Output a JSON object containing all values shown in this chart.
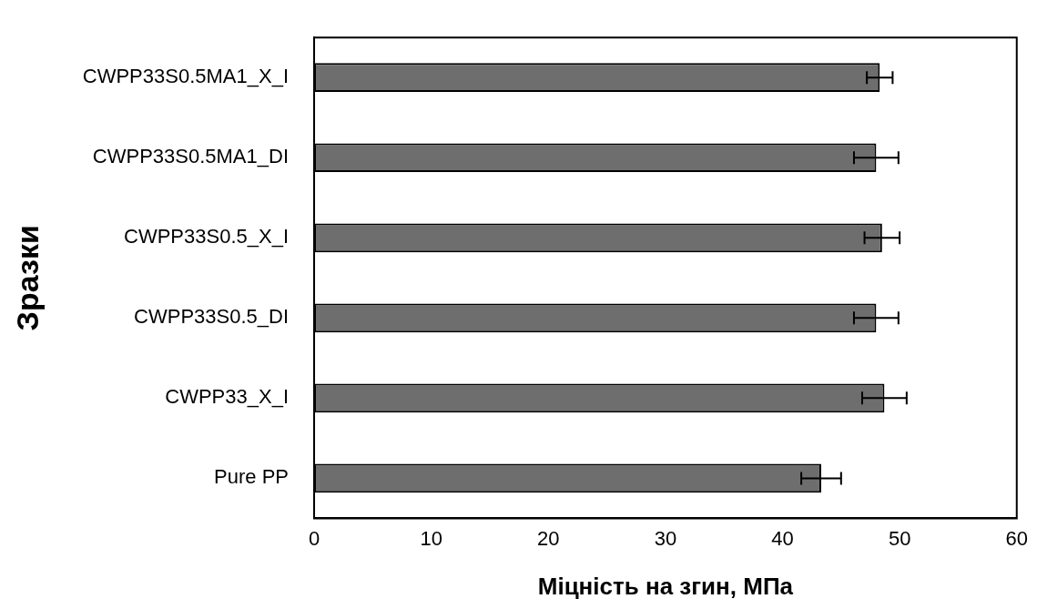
{
  "chart_data": {
    "type": "bar",
    "orientation": "horizontal",
    "xlabel": "Міцність на згин, МПа",
    "ylabel": "Зразки",
    "categories": [
      "CWPP33S0.5MA1_X_I",
      "CWPP33S0.5MA1_DI",
      "CWPP33S0.5_X_I",
      "CWPP33S0.5_DI",
      "CWPP33_X_I",
      "Pure PP"
    ],
    "values": [
      48.3,
      48.0,
      48.5,
      48.0,
      48.7,
      43.3
    ],
    "errors": [
      1.1,
      1.9,
      1.5,
      1.9,
      1.9,
      1.7
    ],
    "color": "#6e6e6e",
    "xlim": [
      0,
      60
    ],
    "xticks": [
      0,
      10,
      20,
      30,
      40,
      50,
      60
    ],
    "grid": false,
    "legend": false
  }
}
